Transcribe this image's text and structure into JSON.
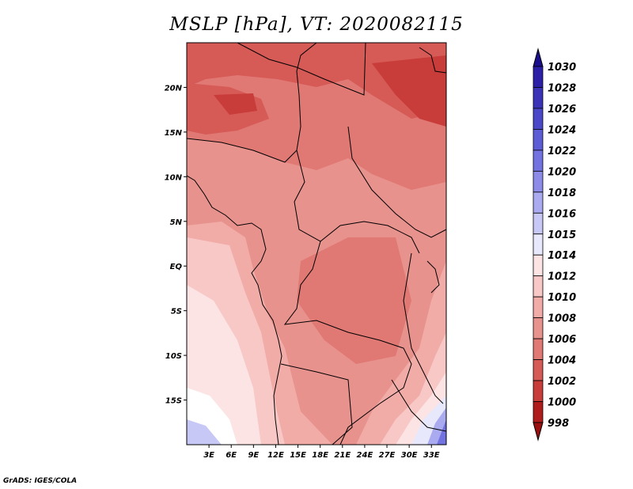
{
  "title": "MSLP [hPa], VT: 2020082115",
  "footer": "GrADS: IGES/COLA",
  "map": {
    "lon_range": [
      0,
      35
    ],
    "lat_range": [
      -20,
      25
    ],
    "lon_ticks": [
      "3E",
      "6E",
      "9E",
      "12E",
      "15E",
      "18E",
      "21E",
      "24E",
      "27E",
      "30E",
      "33E"
    ],
    "lat_ticks": [
      "20N",
      "15N",
      "10N",
      "5N",
      "EQ",
      "5S",
      "10S",
      "15S"
    ]
  },
  "colorbar": {
    "labels": [
      "1030",
      "1028",
      "1026",
      "1024",
      "1022",
      "1020",
      "1018",
      "1016",
      "1015",
      "1014",
      "1012",
      "1010",
      "1008",
      "1006",
      "1004",
      "1002",
      "1000",
      "998"
    ],
    "colors": [
      "#1a0f8c",
      "#2a1fa6",
      "#3a33b8",
      "#4a47c8",
      "#5c5cd6",
      "#7272e0",
      "#8c8ce8",
      "#aaaaf0",
      "#c8c8f6",
      "#e8e8fc",
      "#fde4e4",
      "#f8c8c6",
      "#f2aca8",
      "#e8928e",
      "#e07874",
      "#d65a56",
      "#c83c3a",
      "#b01c1c",
      "#9a1010"
    ]
  }
}
